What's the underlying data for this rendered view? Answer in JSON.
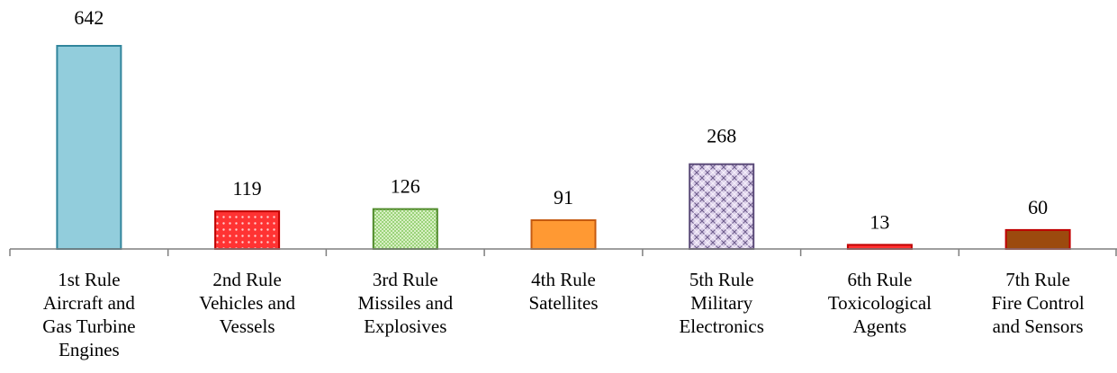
{
  "chart_data": {
    "type": "bar",
    "categories": [
      [
        "1st Rule",
        "Aircraft and",
        "Gas Turbine",
        "Engines"
      ],
      [
        "2nd Rule",
        "Vehicles and",
        "Vessels"
      ],
      [
        "3rd Rule",
        "Missiles and",
        "Explosives"
      ],
      [
        "4th Rule",
        "Satellites"
      ],
      [
        "5th Rule",
        "Military",
        "Electronics"
      ],
      [
        "6th Rule",
        "Toxicological",
        "Agents"
      ],
      [
        "7th Rule",
        "Fire Control",
        "and Sensors"
      ]
    ],
    "values": [
      642,
      119,
      126,
      91,
      268,
      13,
      60
    ],
    "data_labels": [
      "642",
      "119",
      "126",
      "91",
      "268",
      "13",
      "60"
    ],
    "title": "",
    "xlabel": "",
    "ylabel": "",
    "ylim": [
      0,
      642
    ],
    "grid": false,
    "legend": "none",
    "bar_fills": [
      {
        "fill": "#92cddc",
        "stroke": "#31859c",
        "pattern": "solid"
      },
      {
        "fill": "#ff3333",
        "stroke": "#c00000",
        "pattern": "dots"
      },
      {
        "fill": "#9bd37a",
        "stroke": "#4f8a2a",
        "pattern": "fine-grid"
      },
      {
        "fill": "#ff9933",
        "stroke": "#c55a11",
        "pattern": "solid"
      },
      {
        "fill": "#c9b8dc",
        "stroke": "#5a4a78",
        "pattern": "lattice"
      },
      {
        "fill": "#ff3333",
        "stroke": "#c00000",
        "pattern": "solid"
      },
      {
        "fill": "#9c4a0e",
        "stroke": "#c00000",
        "pattern": "solid"
      }
    ],
    "axis_color": "#7f7f7f"
  }
}
